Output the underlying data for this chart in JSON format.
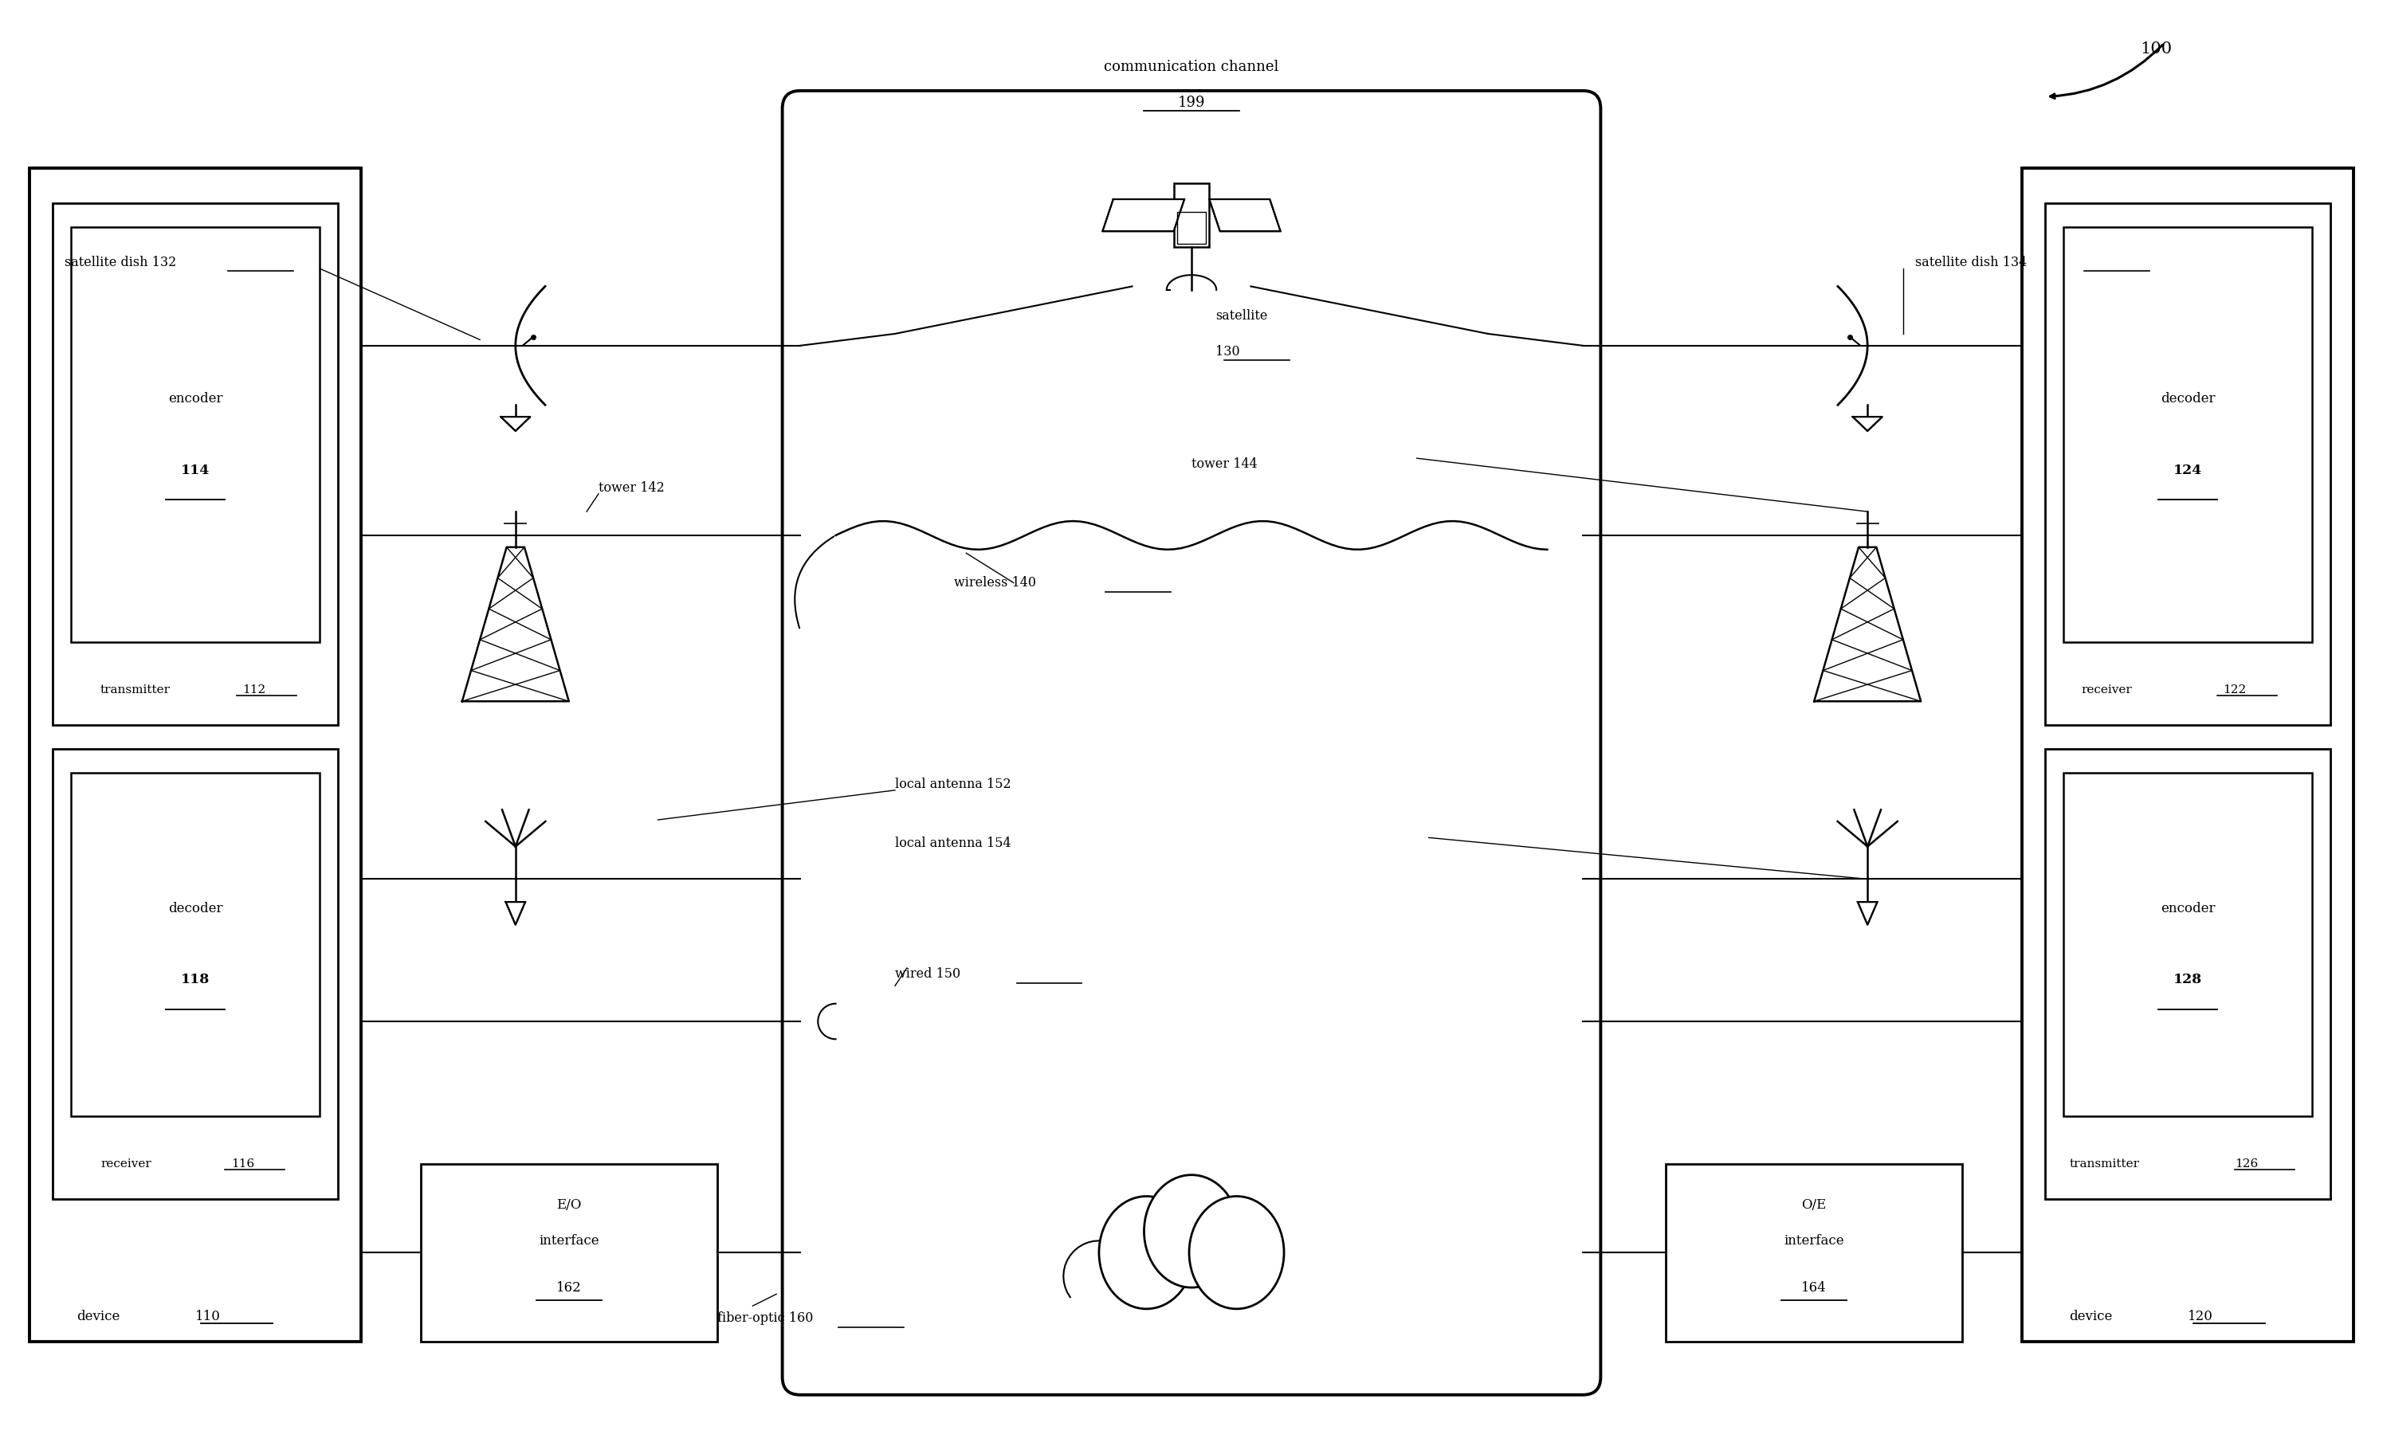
{
  "fig_width": 29.9,
  "fig_height": 18.2,
  "bg_color": "#ffffff",
  "font_family": "DejaVu Serif",
  "comm_channel_label": "communication channel",
  "comm_channel_num": "199",
  "satellite_label": "satellite",
  "satellite_num": "130",
  "sat_dish_left_label": "satellite dish 132",
  "sat_dish_right_label": "satellite dish 134",
  "tower_left_label": "tower 142",
  "tower_right_label": "tower 144",
  "wireless_label": "wireless 140",
  "ant_left_label": "local antenna 152",
  "ant_right_label": "local antenna 154",
  "wired_label": "wired 150",
  "fiber_label": "fiber-optic 160",
  "device_left_label": "device",
  "device_left_num": "110",
  "device_right_label": "device",
  "device_right_num": "120",
  "tx_left_label": "transmitter",
  "tx_left_num": "112",
  "enc_left_label": "encoder",
  "enc_left_num": "114",
  "rx_left_label": "receiver",
  "rx_left_num": "116",
  "dec_left_label": "decoder",
  "dec_left_num": "118",
  "rx_right_label": "receiver",
  "rx_right_num": "122",
  "dec_right_label": "decoder",
  "dec_right_num": "124",
  "tx_right_label": "transmitter",
  "tx_right_num": "126",
  "enc_right_label": "encoder",
  "enc_right_num": "128",
  "eo_line1": "E/O",
  "eo_line2": "interface",
  "eo_num": "162",
  "oe_line1": "O/E",
  "oe_line2": "interface",
  "oe_num": "164",
  "ref_num": "100"
}
